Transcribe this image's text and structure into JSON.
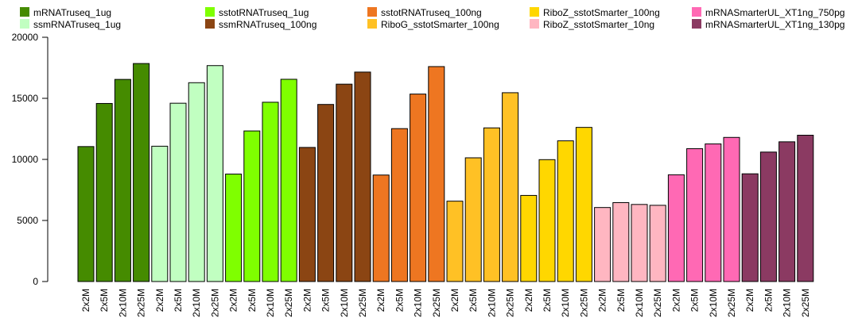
{
  "chart_data": {
    "type": "bar",
    "title": "",
    "xlabel": "",
    "ylabel": "",
    "ylim": [
      0,
      20000
    ],
    "yticks": [
      0,
      5000,
      10000,
      15000,
      20000
    ],
    "legend_position": "top",
    "categories": [
      "2x2M",
      "2x5M",
      "2x10M",
      "2x25M"
    ],
    "series": [
      {
        "name": "mRNATruseq_1ug",
        "color": "#458B00",
        "values": [
          11050,
          14580,
          16550,
          17850
        ]
      },
      {
        "name": "ssmRNATruseq_1ug",
        "color": "#C1FFC1",
        "values": [
          11080,
          14600,
          16280,
          17680
        ]
      },
      {
        "name": "sstotRNATruseq_1ug",
        "color": "#7FFF00",
        "values": [
          8800,
          12330,
          14680,
          16560
        ]
      },
      {
        "name": "ssmRNATruseq_100ng",
        "color": "#8B4513",
        "values": [
          10980,
          14500,
          16160,
          17150
        ]
      },
      {
        "name": "sstotRNATruseq_100ng",
        "color": "#EE7621",
        "values": [
          8720,
          12520,
          15350,
          17600
        ]
      },
      {
        "name": "RiboG_sstotSmarter_100ng",
        "color": "#FFC125",
        "values": [
          6580,
          10130,
          12580,
          15460
        ]
      },
      {
        "name": "RiboZ_sstotSmarter_100ng",
        "color": "#FFD700",
        "values": [
          7050,
          9980,
          11520,
          12620
        ]
      },
      {
        "name": "RiboZ_sstotSmarter_10ng",
        "color": "#FFB6C1",
        "values": [
          6060,
          6460,
          6310,
          6240
        ]
      },
      {
        "name": "mRNASmarterUL_XT1ng_750pg",
        "color": "#FF69B4",
        "values": [
          8740,
          10880,
          11270,
          11800
        ]
      },
      {
        "name": "mRNASmarterUL_XT1ng_130pg",
        "color": "#8B3A62",
        "values": [
          8820,
          10600,
          11440,
          11980
        ]
      }
    ]
  }
}
